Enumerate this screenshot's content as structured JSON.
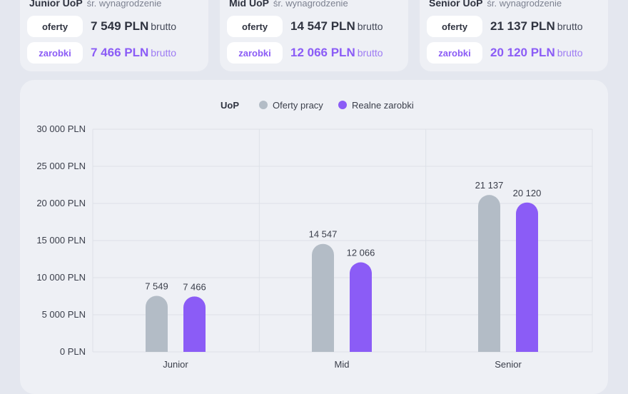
{
  "summary_cards": [
    {
      "level": "Junior UoP",
      "subtitle": "śr. wynagrodzenie",
      "offers_label": "oferty",
      "offers_value": "7 549 PLN",
      "earnings_label": "zarobki",
      "earnings_value": "7 466 PLN",
      "unit_suffix": "brutto"
    },
    {
      "level": "Mid UoP",
      "subtitle": "śr. wynagrodzenie",
      "offers_label": "oferty",
      "offers_value": "14 547 PLN",
      "earnings_label": "zarobki",
      "earnings_value": "12 066 PLN",
      "unit_suffix": "brutto"
    },
    {
      "level": "Senior UoP",
      "subtitle": "śr. wynagrodzenie",
      "offers_label": "oferty",
      "offers_value": "21 137 PLN",
      "earnings_label": "zarobki",
      "earnings_value": "20 120 PLN",
      "unit_suffix": "brutto"
    }
  ],
  "colors": {
    "offers": "#b3bcc6",
    "earnings": "#8b5cf6",
    "grid": "#dde1e8"
  },
  "chart_data": {
    "type": "bar",
    "legend_title": "UoP",
    "legend_position": "top",
    "categories": [
      "Junior",
      "Mid",
      "Senior"
    ],
    "series": [
      {
        "name": "Oferty pracy",
        "values": [
          7549,
          14547,
          21137
        ],
        "labels": [
          "7 549",
          "14 547",
          "21 137"
        ]
      },
      {
        "name": "Realne zarobki",
        "values": [
          7466,
          12066,
          20120
        ],
        "labels": [
          "7 466",
          "12 066",
          "20 120"
        ]
      }
    ],
    "ylim": [
      0,
      30000
    ],
    "yticks": [
      0,
      5000,
      10000,
      15000,
      20000,
      25000,
      30000
    ],
    "ytick_labels": [
      "0 PLN",
      "5 000 PLN",
      "10 000 PLN",
      "15 000 PLN",
      "20 000 PLN",
      "25 000 PLN",
      "30 000 PLN"
    ],
    "grid": true
  }
}
